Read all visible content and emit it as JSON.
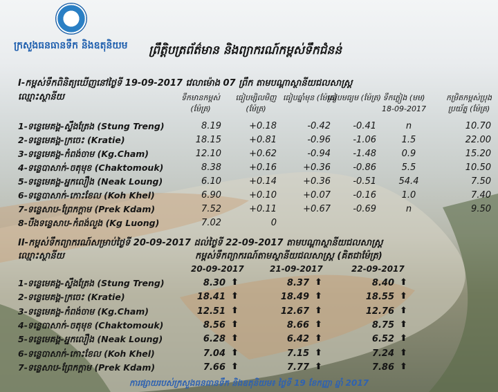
{
  "header": {
    "ministry": "ក្រសួងធនធានទឹក និងឧតុនិយម",
    "title": "ព្រឹត្តិបត្រព័ត៌មាន និងព្យាករណ៍កម្ពស់ទឹកជំនន់"
  },
  "observed": {
    "title": "I-កម្ពស់ទឹកពិនិត្យឃើញនៅថ្ងៃទី 19-09-2017 វេលាម៉ោង 07 ព្រឹក តាមបណ្តាស្ថានីយជលសាស្ត្រ",
    "station_header": "ឈ្មោះស្ថានីយ",
    "columns": [
      "ទឹកមានកម្ពស់ (ម៉ែត្រ)",
      "ធៀបម្សិលមិញ (ម៉ែត្រ)",
      "ធៀបឆ្នាំមុន (ម៉ែត្រ)",
      "ធៀបមធ្យម (ម៉ែត្រ)",
      "ទឹកភ្លៀង (មម) 18-09-2017",
      "កម្រិតកម្ពស់ប្រុងប្រយ័ត្ន (ម៉ែត្រ)"
    ],
    "rows": [
      [
        "1-ទន្លេមេគង្គ-ស្ទឹងត្រែង (Stung Treng)",
        "8.19",
        "+0.18",
        "-0.42",
        "-0.41",
        "n",
        "10.70"
      ],
      [
        "2-ទន្លេមេគង្គ-ក្រចេះ (Kratie)",
        "18.15",
        "+0.81",
        "-0.96",
        "-1.06",
        "1.5",
        "22.00"
      ],
      [
        "3-ទន្លេមេគង្គ-កំពង់ចាម (Kg.Cham)",
        "12.10",
        "+0.62",
        "-0.94",
        "-1.48",
        "0.9",
        "15.20"
      ],
      [
        "4-ទន្លេបាសាក់-ចតុមុខ (Chaktomouk)",
        "8.38",
        "+0.16",
        "+0.36",
        "-0.86",
        "5.5",
        "10.50"
      ],
      [
        "5-ទន្លេមេគង្គ-អ្នកលឿង (Neak Loung)",
        "6.10",
        "+0.14",
        "+0.36",
        "-0.51",
        "54.4",
        "7.50"
      ],
      [
        "6-ទន្លេបាសាក់-កោះខែល (Koh Khel)",
        "6.90",
        "+0.10",
        "+0.07",
        "-0.16",
        "1.0",
        "7.40"
      ],
      [
        "7-ទន្លេសាប-ព្រែកក្តាម (Prek Kdam)",
        "7.52",
        "+0.11",
        "+0.67",
        "-0.69",
        "n",
        "9.50"
      ],
      [
        "8-បឹងទន្លេសាប-កំពង់លួង (Kg Luong)",
        "7.02",
        "0",
        "",
        "",
        "",
        ""
      ]
    ]
  },
  "forecast": {
    "title": "II-កម្ពស់ទឹកព្យាករណ៍សម្រាប់ថ្ងៃទី 20-09-2017 ដល់ថ្ងៃទី 22-09-2017 តាមបណ្តាស្ថានីយជលសាស្ត្រ",
    "station_header": "ឈ្មោះស្ថានីយ",
    "subtitle": "កម្ពស់ទឹកព្យាករណ៍តាមស្ថានីយជលសាស្ត្រ (គិតជាម៉ែត្រ)",
    "dates": [
      "20-09-2017",
      "21-09-2017",
      "22-09-2017"
    ],
    "trend_icon": "arrow-up-icon",
    "rows": [
      [
        "1-ទន្លេមេគង្គ-ស្ទឹងត្រែង (Stung Treng)",
        "8.30",
        "8.37",
        "8.40"
      ],
      [
        "2-ទន្លេមេគង្គ-ក្រចេះ (Kratie)",
        "18.41",
        "18.49",
        "18.55"
      ],
      [
        "3-ទន្លេមេគង្គ-កំពង់ចាម (Kg.Cham)",
        "12.51",
        "12.67",
        "12.76"
      ],
      [
        "4-ទន្លេបាសាក់-ចតុមុខ (Chaktomouk)",
        "8.56",
        "8.66",
        "8.75"
      ],
      [
        "5-ទន្លេមេគង្គ-អ្នកលឿង (Neak Loung)",
        "6.28",
        "6.42",
        "6.52"
      ],
      [
        "6-ទន្លេបាសាក់-កោះខែល (Koh Khel)",
        "7.04",
        "7.15",
        "7.24"
      ],
      [
        "7-ទន្លេសាប-ព្រែកក្តាម (Prek Kdam)",
        "7.66",
        "7.77",
        "7.86"
      ]
    ]
  },
  "footer": "ការផ្សាយរបស់ក្រសួងធនធានទឹក និងឧតុនិយម៖ ថ្ងៃទី 19 ខែកញ្ញា ឆ្នាំ 2017",
  "colors": {
    "ministry": "#1f5fae",
    "footer": "#2f62b0"
  }
}
